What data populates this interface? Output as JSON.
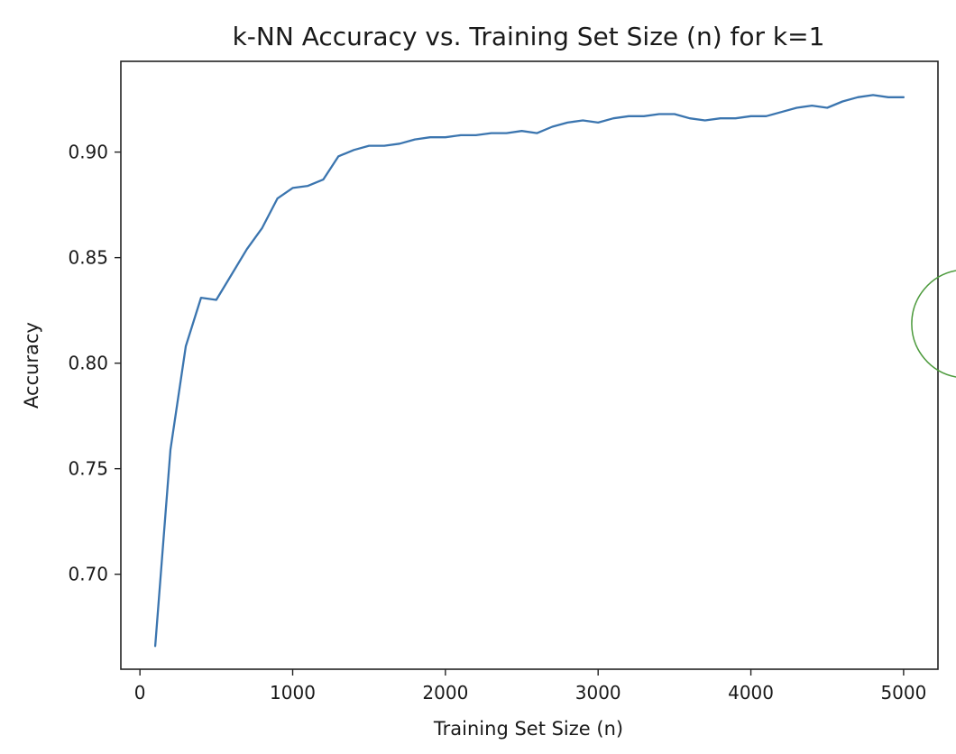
{
  "chart_data": {
    "type": "line",
    "title": "k-NN Accuracy vs. Training Set Size (n) for k=1",
    "xlabel": "Training Set Size (n)",
    "ylabel": "Accuracy",
    "xlim": [
      -125,
      5225
    ],
    "ylim": [
      0.655,
      0.943
    ],
    "xticks": [
      0,
      1000,
      2000,
      3000,
      4000,
      5000
    ],
    "xtick_labels": [
      "0",
      "1000",
      "2000",
      "3000",
      "4000",
      "5000"
    ],
    "yticks": [
      0.7,
      0.75,
      0.8,
      0.85,
      0.9
    ],
    "ytick_labels": [
      "0.70",
      "0.75",
      "0.80",
      "0.85",
      "0.90"
    ],
    "grid": false,
    "colors": {
      "line": "#3b75af",
      "axes": "#222222",
      "circle": "#4c9a3c"
    },
    "series": [
      {
        "x": [
          100,
          200,
          300,
          400,
          500,
          600,
          700,
          800,
          900,
          1000,
          1100,
          1200,
          1300,
          1400,
          1500,
          1600,
          1700,
          1800,
          1900,
          2000,
          2100,
          2200,
          2300,
          2400,
          2500,
          2600,
          2700,
          2800,
          2900,
          3000,
          3100,
          3200,
          3300,
          3400,
          3500,
          3600,
          3700,
          3800,
          3900,
          4000,
          4100,
          4200,
          4300,
          4400,
          4500,
          4600,
          4700,
          4800,
          4900,
          5000
        ],
        "values": [
          0.666,
          0.759,
          0.808,
          0.831,
          0.83,
          0.842,
          0.854,
          0.864,
          0.878,
          0.883,
          0.884,
          0.887,
          0.898,
          0.901,
          0.903,
          0.903,
          0.904,
          0.906,
          0.907,
          0.907,
          0.908,
          0.908,
          0.909,
          0.909,
          0.91,
          0.909,
          0.912,
          0.914,
          0.915,
          0.914,
          0.916,
          0.917,
          0.917,
          0.918,
          0.918,
          0.916,
          0.915,
          0.916,
          0.916,
          0.917,
          0.917,
          0.919,
          0.921,
          0.922,
          0.921,
          0.924,
          0.926,
          0.927,
          0.926,
          0.926
        ]
      }
    ]
  }
}
